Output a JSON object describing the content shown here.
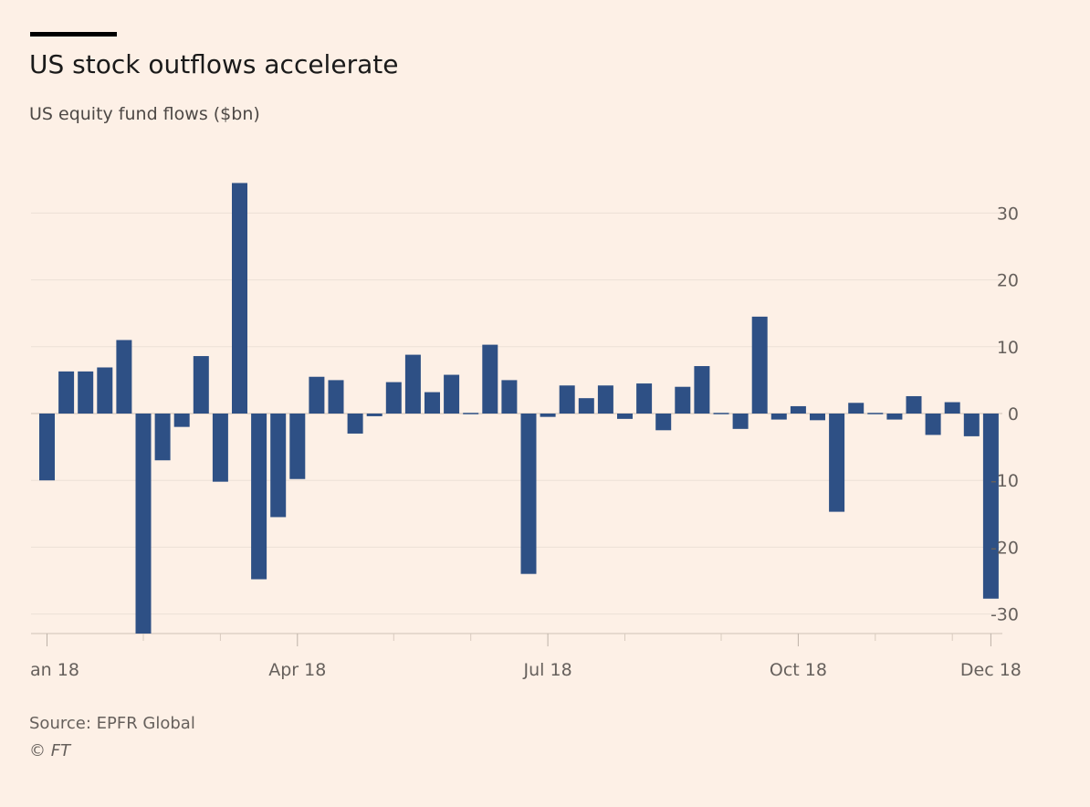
{
  "colors": {
    "background": "#fdf0e6",
    "bar": "#2e5085",
    "gridline": "#ebe0d6",
    "zero_line": "#d8cbbf",
    "tick_text": "#66605c"
  },
  "chart_data": {
    "type": "bar",
    "title": "US stock outflows accelerate",
    "subtitle": "US equity fund flows ($bn)",
    "source": "Source: EPFR Global",
    "credit": "© FT",
    "ylim": [
      -33,
      35
    ],
    "yticks": [
      30,
      20,
      10,
      0,
      -10,
      -20,
      -30
    ],
    "ytick_labels": [
      "30",
      "20",
      "10",
      "0",
      "-10",
      "-20",
      "-30"
    ],
    "grid": true,
    "y_axis_side": "right",
    "xtick_labels": [
      {
        "label": "an 18",
        "index": 0
      },
      {
        "label": "Apr 18",
        "index": 13
      },
      {
        "label": "Jul 18",
        "index": 26
      },
      {
        "label": "Oct 18",
        "index": 39
      },
      {
        "label": "Dec 18",
        "index": 49
      }
    ],
    "minor_tick_indices": [
      5,
      9,
      18,
      22,
      30,
      35,
      43,
      47
    ],
    "values": [
      -10,
      6.3,
      6.3,
      6.9,
      11,
      -33,
      -7,
      -2,
      8.6,
      -10.2,
      34.5,
      -24.8,
      -15.5,
      -9.8,
      5.5,
      5.0,
      -3.0,
      -0.4,
      4.7,
      8.8,
      3.2,
      5.8,
      -0.1,
      10.3,
      5.0,
      -24,
      -0.5,
      4.2,
      2.3,
      4.2,
      -0.8,
      4.5,
      -2.5,
      4.0,
      7.1,
      -0.1,
      -2.3,
      14.5,
      -0.9,
      1.1,
      -1.0,
      -14.7,
      1.6,
      -0.2,
      -0.9,
      2.6,
      -3.2,
      1.7,
      -3.4,
      -27.7
    ]
  }
}
